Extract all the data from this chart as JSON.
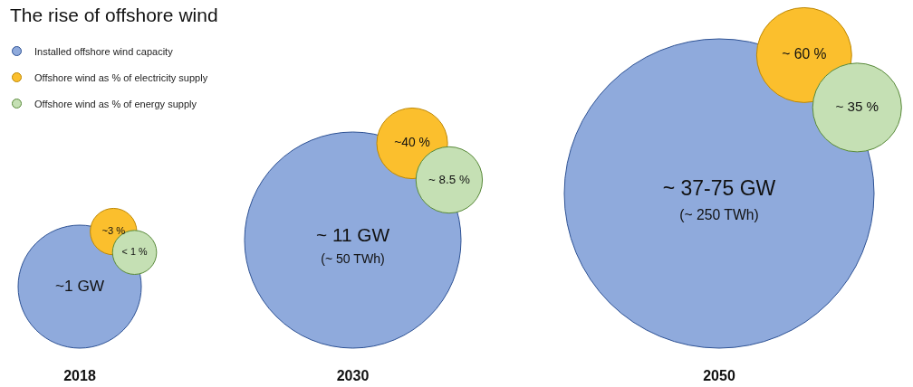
{
  "chart_data": {
    "type": "other",
    "title": "The rise of offshore wind",
    "categories": [
      "2018",
      "2030",
      "2050"
    ],
    "legend": "top left",
    "series": [
      {
        "name": "Installed offshore wind capacity",
        "color": "#8faadc",
        "values": [
          1,
          11,
          null
        ],
        "value_labels": [
          "~1 GW",
          "~ 11 GW\n(~ 50 TWh)",
          "~ 37-75 GW\n(~ 250 TWh)"
        ]
      },
      {
        "name": "Offshore wind as % of electricity supply",
        "color": "#fbbf2d",
        "values": [
          3,
          40,
          60
        ],
        "value_labels": [
          "~3 %",
          "~40 %",
          "~ 60 %"
        ]
      },
      {
        "name": "Offshore wind as % of energy supply",
        "color": "#c5e0b4",
        "values": [
          1,
          8.5,
          35
        ],
        "value_labels": [
          "< 1 %",
          "~ 8.5 %",
          "~ 35 %"
        ]
      }
    ]
  }
}
